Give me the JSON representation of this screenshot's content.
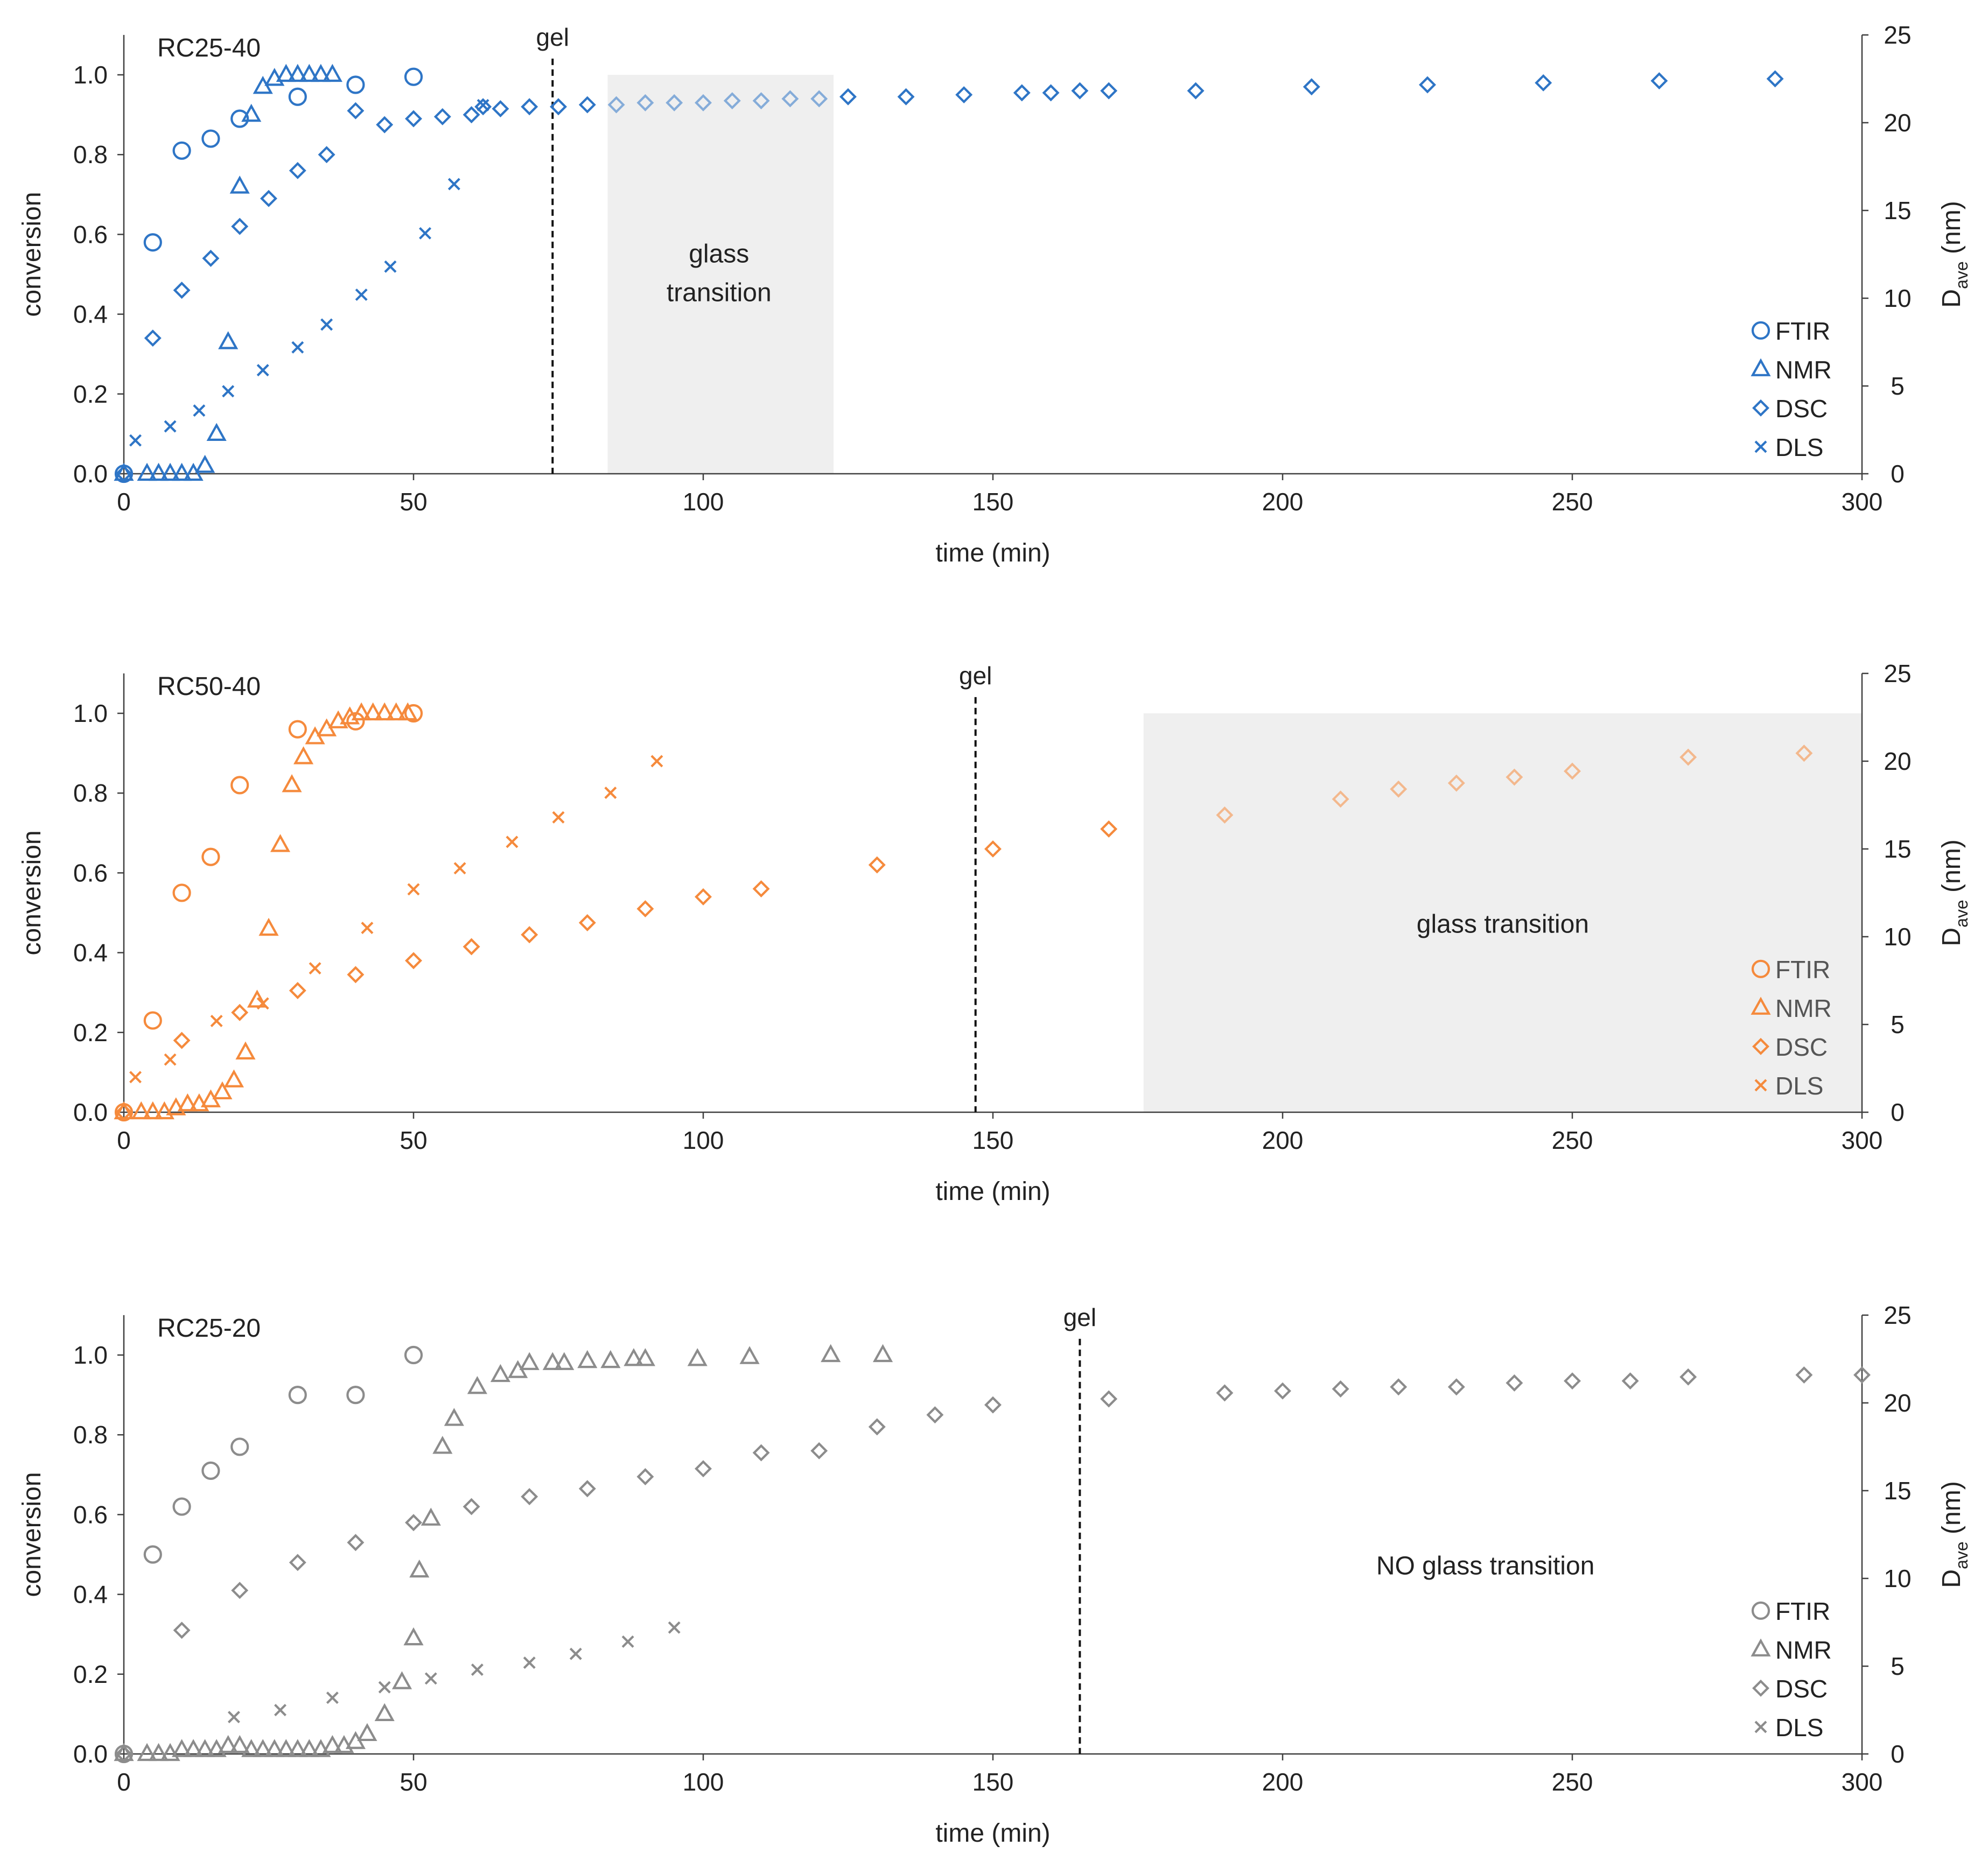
{
  "chart_data": [
    {
      "type": "scatter",
      "panel_label": "RC25-40",
      "color": "#2E75C6",
      "xlabel": "time (min)",
      "ylabel": "conversion",
      "y2label_main": "D",
      "y2label_sub": "ave",
      "y2label_unit": " (nm)",
      "xlim": [
        0,
        300
      ],
      "ylim": [
        0,
        1.1
      ],
      "y2lim": [
        0,
        25
      ],
      "xticks": [
        "0",
        "50",
        "100",
        "150",
        "200",
        "250",
        "300"
      ],
      "yticks": [
        "0.0",
        "0.2",
        "0.4",
        "0.6",
        "0.8",
        "1.0"
      ],
      "y2ticks": [
        "0",
        "5",
        "10",
        "15",
        "20",
        "25"
      ],
      "gel": {
        "x": 74,
        "label": "gel"
      },
      "shade": {
        "x0": 83.5,
        "x1": 122.5,
        "y1": 1.0
      },
      "shade_label": [
        "glass",
        "transition"
      ],
      "legend": [
        "FTIR",
        "NMR",
        "DSC",
        "DLS"
      ],
      "series": [
        {
          "name": "FTIR",
          "marker": "circle",
          "axis": "left",
          "x": [
            0,
            5,
            10,
            15,
            20,
            30,
            40,
            50
          ],
          "y": [
            0,
            0.58,
            0.81,
            0.84,
            0.89,
            0.945,
            0.975,
            0.995
          ]
        },
        {
          "name": "NMR",
          "marker": "triangle",
          "axis": "left",
          "x": [
            0,
            4,
            6,
            8,
            10,
            12,
            14,
            16,
            18,
            20,
            22,
            24,
            26,
            28,
            30,
            32,
            34,
            36
          ],
          "y": [
            0,
            0,
            0,
            0,
            0,
            0,
            0.02,
            0.1,
            0.33,
            0.72,
            0.9,
            0.97,
            0.99,
            1.0,
            1.0,
            1.0,
            1.0,
            1.0
          ]
        },
        {
          "name": "DSC",
          "marker": "diamond",
          "axis": "left",
          "x": [
            0,
            5,
            10,
            15,
            20,
            25,
            30,
            35,
            40,
            45,
            50,
            55,
            60,
            62,
            65,
            70,
            75,
            80,
            85,
            90,
            95,
            100,
            105,
            110,
            115,
            120,
            125,
            135,
            145,
            155,
            160,
            165,
            170,
            185,
            205,
            225,
            245,
            265,
            285
          ],
          "y": [
            0,
            0.34,
            0.46,
            0.54,
            0.62,
            0.69,
            0.76,
            0.8,
            0.91,
            0.875,
            0.89,
            0.895,
            0.9,
            0.92,
            0.915,
            0.92,
            0.92,
            0.925,
            0.925,
            0.93,
            0.93,
            0.93,
            0.935,
            0.935,
            0.94,
            0.94,
            0.945,
            0.945,
            0.95,
            0.955,
            0.955,
            0.96,
            0.96,
            0.96,
            0.97,
            0.975,
            0.98,
            0.985,
            0.99
          ],
          "faded_range": [
            83,
            123
          ]
        },
        {
          "name": "DLS",
          "marker": "x",
          "axis": "right",
          "x": [
            2,
            8,
            13,
            18,
            24,
            30,
            35,
            41,
            46,
            52,
            57,
            62
          ],
          "y": [
            1.9,
            2.7,
            3.6,
            4.7,
            5.9,
            7.2,
            8.5,
            10.2,
            11.8,
            13.7,
            16.5,
            21
          ]
        }
      ]
    },
    {
      "type": "scatter",
      "panel_label": "RC50-40",
      "color": "#F58A3C",
      "xlabel": "time (min)",
      "ylabel": "conversion",
      "y2label_main": "D",
      "y2label_sub": "ave",
      "y2label_unit": " (nm)",
      "xlim": [
        0,
        300
      ],
      "ylim": [
        0,
        1.1
      ],
      "y2lim": [
        0,
        25
      ],
      "xticks": [
        "0",
        "50",
        "100",
        "150",
        "200",
        "250",
        "300"
      ],
      "yticks": [
        "0.0",
        "0.2",
        "0.4",
        "0.6",
        "0.8",
        "1.0"
      ],
      "y2ticks": [
        "0",
        "5",
        "10",
        "15",
        "20",
        "25"
      ],
      "gel": {
        "x": 147,
        "label": "gel"
      },
      "shade": {
        "x0": 176,
        "x1": 300,
        "y1": 1.0
      },
      "shade_label": [
        "glass transition"
      ],
      "legend": [
        "FTIR",
        "NMR",
        "DSC",
        "DLS"
      ],
      "series": [
        {
          "name": "FTIR",
          "marker": "circle",
          "axis": "left",
          "x": [
            0,
            5,
            10,
            15,
            20,
            30,
            40,
            50
          ],
          "y": [
            0,
            0.23,
            0.55,
            0.64,
            0.82,
            0.96,
            0.98,
            1.0
          ]
        },
        {
          "name": "NMR",
          "marker": "triangle",
          "axis": "left",
          "x": [
            0,
            3,
            5,
            7,
            9,
            11,
            13,
            15,
            17,
            19,
            21,
            23,
            25,
            27,
            29,
            31,
            33,
            35,
            37,
            39,
            41,
            43,
            45,
            47,
            49
          ],
          "y": [
            0,
            0,
            0,
            0,
            0.01,
            0.02,
            0.02,
            0.03,
            0.05,
            0.08,
            0.15,
            0.28,
            0.46,
            0.67,
            0.82,
            0.89,
            0.94,
            0.96,
            0.98,
            0.99,
            1.0,
            1.0,
            1.0,
            1.0,
            1.0
          ]
        },
        {
          "name": "DSC",
          "marker": "diamond",
          "axis": "left",
          "x": [
            0,
            10,
            20,
            30,
            40,
            50,
            60,
            70,
            80,
            90,
            100,
            110,
            130,
            150,
            170,
            190,
            210,
            220,
            230,
            240,
            250,
            270,
            290
          ],
          "y": [
            0,
            0.18,
            0.25,
            0.305,
            0.345,
            0.38,
            0.415,
            0.445,
            0.475,
            0.51,
            0.54,
            0.56,
            0.62,
            0.66,
            0.71,
            0.745,
            0.785,
            0.81,
            0.825,
            0.84,
            0.855,
            0.89,
            0.9
          ],
          "faded_range": [
            175,
            300
          ]
        },
        {
          "name": "DLS",
          "marker": "x",
          "axis": "right",
          "x": [
            2,
            8,
            16,
            24,
            33,
            42,
            50,
            58,
            67,
            75,
            84,
            92
          ],
          "y": [
            2,
            3,
            5.2,
            6.2,
            8.2,
            10.5,
            12.7,
            13.9,
            15.4,
            16.8,
            18.2,
            20
          ]
        }
      ]
    },
    {
      "type": "scatter",
      "panel_label": "RC25-20",
      "color": "#8C8C8C",
      "xlabel": "time (min)",
      "ylabel": "conversion",
      "y2label_main": "D",
      "y2label_sub": "ave",
      "y2label_unit": " (nm)",
      "xlim": [
        0,
        300
      ],
      "ylim": [
        0,
        1.1
      ],
      "y2lim": [
        0,
        25
      ],
      "xticks": [
        "0",
        "50",
        "100",
        "150",
        "200",
        "250",
        "300"
      ],
      "yticks": [
        "0.0",
        "0.2",
        "0.4",
        "0.6",
        "0.8",
        "1.0"
      ],
      "y2ticks": [
        "0",
        "5",
        "10",
        "15",
        "20",
        "25"
      ],
      "gel": {
        "x": 165,
        "label": "gel"
      },
      "shade": null,
      "shade_label": [
        "NO glass transition"
      ],
      "legend": [
        "FTIR",
        "NMR",
        "DSC",
        "DLS"
      ],
      "series": [
        {
          "name": "FTIR",
          "marker": "circle",
          "axis": "left",
          "x": [
            0,
            5,
            10,
            15,
            20,
            30,
            40,
            50
          ],
          "y": [
            0,
            0.5,
            0.62,
            0.71,
            0.77,
            0.9,
            0.9,
            1.0
          ]
        },
        {
          "name": "NMR",
          "marker": "triangle",
          "axis": "left",
          "x": [
            0,
            4,
            6,
            8,
            10,
            12,
            14,
            16,
            18,
            20,
            22,
            24,
            26,
            28,
            30,
            32,
            34,
            36,
            38,
            40,
            42,
            45,
            48,
            50,
            51,
            53,
            55,
            57,
            61,
            65,
            68,
            70,
            74,
            76,
            80,
            84,
            88,
            90,
            99,
            108,
            122,
            131
          ],
          "y": [
            0,
            0,
            0,
            0,
            0.01,
            0.01,
            0.01,
            0.01,
            0.02,
            0.02,
            0.01,
            0.01,
            0.01,
            0.01,
            0.01,
            0.01,
            0.01,
            0.02,
            0.02,
            0.03,
            0.05,
            0.1,
            0.18,
            0.29,
            0.46,
            0.59,
            0.77,
            0.84,
            0.92,
            0.95,
            0.96,
            0.98,
            0.98,
            0.98,
            0.985,
            0.985,
            0.99,
            0.99,
            0.99,
            0.995,
            1.0,
            1.0
          ]
        },
        {
          "name": "DSC",
          "marker": "diamond",
          "axis": "left",
          "x": [
            0,
            10,
            20,
            30,
            40,
            50,
            60,
            70,
            80,
            90,
            100,
            110,
            120,
            130,
            140,
            150,
            170,
            190,
            200,
            210,
            220,
            230,
            240,
            250,
            260,
            270,
            290,
            300
          ],
          "y": [
            0,
            0.31,
            0.41,
            0.48,
            0.53,
            0.58,
            0.62,
            0.645,
            0.665,
            0.695,
            0.715,
            0.755,
            0.76,
            0.82,
            0.85,
            0.875,
            0.89,
            0.905,
            0.91,
            0.915,
            0.92,
            0.92,
            0.93,
            0.935,
            0.935,
            0.945,
            0.95,
            0.95
          ],
          "faded_range": null
        },
        {
          "name": "DLS",
          "marker": "x",
          "axis": "right",
          "x": [
            19,
            27,
            36,
            45,
            53,
            61,
            70,
            78,
            87,
            95
          ],
          "y": [
            2.1,
            2.5,
            3.2,
            3.8,
            4.3,
            4.8,
            5.2,
            5.7,
            6.4,
            7.2
          ]
        }
      ]
    }
  ]
}
